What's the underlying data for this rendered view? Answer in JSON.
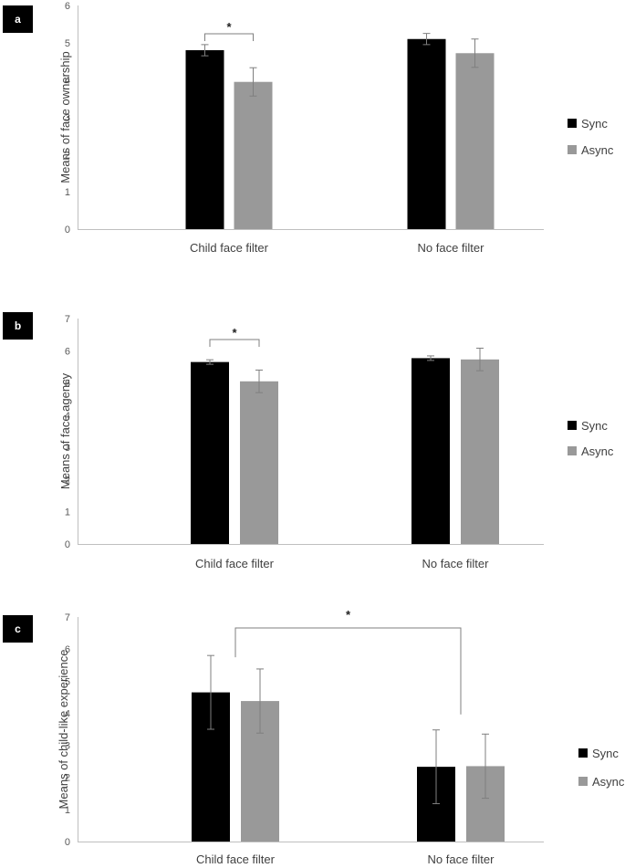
{
  "colors": {
    "sync": "#000000",
    "async": "#999999",
    "axis": "#bfbfbf",
    "err": "#7f7f7f",
    "text": "#404040"
  },
  "chart_data": [
    {
      "panel_label": "a",
      "type": "bar",
      "ylabel": "Means of face ownership",
      "ylim": [
        0,
        6
      ],
      "yticks": [
        "0",
        "1",
        "2",
        "3",
        "4",
        "5",
        "6"
      ],
      "categories": [
        "Child face filter",
        "No face filter"
      ],
      "series": [
        {
          "name": "Sync",
          "values": [
            4.8,
            5.1
          ],
          "err": [
            0.15,
            0.15
          ]
        },
        {
          "name": "Async",
          "values": [
            3.95,
            4.72
          ],
          "err": [
            0.38,
            0.38
          ]
        }
      ],
      "legend": [
        "Sync",
        "Async"
      ],
      "significance": [
        {
          "type": "within",
          "category": 0,
          "label": "*"
        }
      ]
    },
    {
      "panel_label": "b",
      "type": "bar",
      "ylabel": "Means of face agency",
      "ylim": [
        0,
        7
      ],
      "yticks": [
        "0",
        "1",
        "2",
        "3",
        "4",
        "5",
        "6",
        "7"
      ],
      "categories": [
        "Child face filter",
        "No face filter"
      ],
      "series": [
        {
          "name": "Sync",
          "values": [
            5.65,
            5.77
          ],
          "err": [
            0.07,
            0.07
          ]
        },
        {
          "name": "Async",
          "values": [
            5.05,
            5.73
          ],
          "err": [
            0.35,
            0.35
          ]
        }
      ],
      "legend": [
        "Sync",
        "Async"
      ],
      "significance": [
        {
          "type": "within",
          "category": 0,
          "label": "*"
        }
      ]
    },
    {
      "panel_label": "c",
      "type": "bar",
      "ylabel": "Means of child-like experience",
      "ylim": [
        0,
        7
      ],
      "yticks": [
        "0",
        "1",
        "2",
        "3",
        "4",
        "5",
        "6",
        "7"
      ],
      "categories": [
        "Child face filter",
        "No face filter"
      ],
      "series": [
        {
          "name": "Sync",
          "values": [
            4.65,
            2.33
          ],
          "err": [
            1.15,
            1.15
          ]
        },
        {
          "name": "Async",
          "values": [
            4.38,
            2.35
          ],
          "err": [
            1.0,
            1.0
          ]
        }
      ],
      "legend": [
        "Sync",
        "Async"
      ],
      "significance": [
        {
          "type": "between",
          "label": "*"
        }
      ]
    }
  ]
}
